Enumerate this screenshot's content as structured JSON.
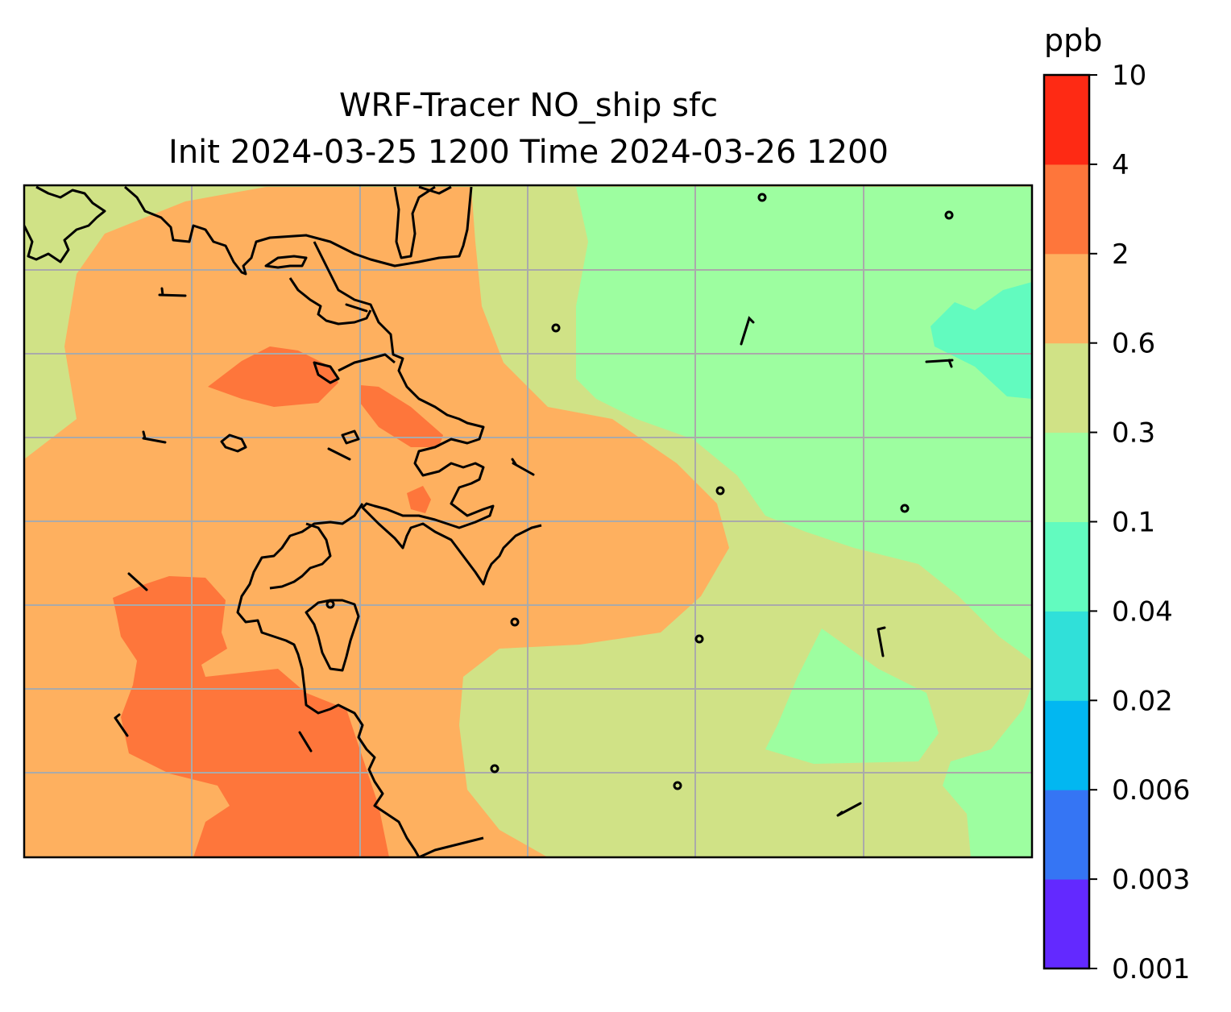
{
  "title_line1": "WRF-Tracer NO_ship sfc",
  "title_line2": "Init 2024-03-25 1200 Time 2024-03-26 1200",
  "colorbar": {
    "units": "ppb",
    "levels": [
      "0.001",
      "0.003",
      "0.006",
      "0.02",
      "0.04",
      "0.1",
      "0.3",
      "0.6",
      "2",
      "4",
      "10"
    ],
    "colors": [
      "#6329ff",
      "#3575f4",
      "#02b7f1",
      "#30e0d9",
      "#62fbbf",
      "#9dfea0",
      "#d0e286",
      "#feb05f",
      "#fe763b",
      "#fe2a14"
    ]
  },
  "map": {
    "gridline_color": "#aaaaaa",
    "coastline_color": "#000000"
  }
}
